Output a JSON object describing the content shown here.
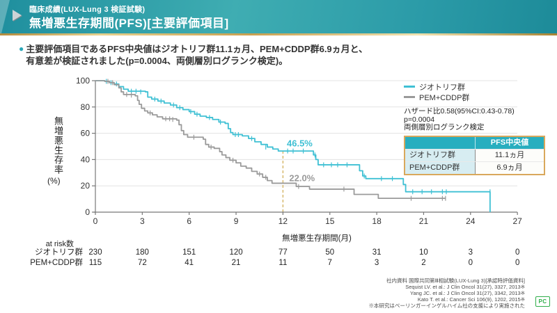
{
  "header": {
    "subtitle": "臨床成績(LUX-Lung 3 検証試験)",
    "title": "無増悪生存期間(PFS)[主要評価項目]"
  },
  "lead": {
    "bullet": "●",
    "line1": "主要評価項目であるPFS中央値はジオトリフ群11.1ヵ月、PEM+CDDP群6.9ヵ月と、",
    "line2": "有意差が検証されました(p=0.0004、両側層別ログランク検定)。"
  },
  "legend": {
    "items": [
      {
        "label": "ジオトリフ群",
        "color": "#3fc0d4"
      },
      {
        "label": "PEM+CDDP群",
        "color": "#9a9a9a"
      }
    ]
  },
  "stats": {
    "line1": "ハザード比0.58(95%CI:0.43-0.78)",
    "line2": "p=0.0004",
    "line3": "両側層別ログランク検定"
  },
  "median_table": {
    "header_label": "",
    "header_value": "PFS中央値",
    "rows": [
      {
        "label": "ジオトリフ群",
        "value": "11.1ヵ月"
      },
      {
        "label": "PEM+CDDP群",
        "value": "6.9ヵ月"
      }
    ]
  },
  "chart_data": {
    "type": "line",
    "kind": "kaplan-meier-step",
    "xlabel": "無増悪生存期間(月)",
    "ylabel_vertical": "無増悪生存率",
    "ylabel_unit": "(%)",
    "xlim": [
      0,
      27
    ],
    "ylim": [
      0,
      100
    ],
    "xticks": [
      0,
      3,
      6,
      9,
      12,
      15,
      18,
      21,
      24,
      27
    ],
    "yticks": [
      0,
      20,
      40,
      60,
      80,
      100
    ],
    "grid": "horizontal",
    "legend_position": "top-right",
    "series": [
      {
        "name": "ジオトリフ群",
        "color": "#3fc0d4",
        "median_months": 11.1,
        "points": [
          [
            0,
            100
          ],
          [
            0.6,
            99.5
          ],
          [
            0.9,
            98.5
          ],
          [
            1.2,
            97.5
          ],
          [
            1.5,
            95.5
          ],
          [
            1.8,
            93.5
          ],
          [
            2.1,
            92
          ],
          [
            3.2,
            91.5
          ],
          [
            3.35,
            87.5
          ],
          [
            3.6,
            86
          ],
          [
            4.0,
            84.5
          ],
          [
            4.4,
            83
          ],
          [
            4.8,
            81.5
          ],
          [
            5.2,
            79.5
          ],
          [
            5.6,
            78
          ],
          [
            6.0,
            76.5
          ],
          [
            6.35,
            74.5
          ],
          [
            6.7,
            73
          ],
          [
            7.1,
            72
          ],
          [
            7.5,
            70.5
          ],
          [
            7.9,
            68.5
          ],
          [
            8.3,
            67.5
          ],
          [
            8.5,
            63.5
          ],
          [
            8.65,
            60.5
          ],
          [
            8.8,
            59
          ],
          [
            9.4,
            58
          ],
          [
            9.8,
            56
          ],
          [
            10.2,
            53.5
          ],
          [
            10.6,
            51.5
          ],
          [
            11.0,
            49.5
          ],
          [
            11.35,
            48
          ],
          [
            11.7,
            46.5
          ],
          [
            13.8,
            46.5
          ],
          [
            13.95,
            43.5
          ],
          [
            14.1,
            40
          ],
          [
            14.25,
            36
          ],
          [
            16.7,
            36
          ],
          [
            16.9,
            31.5
          ],
          [
            17.1,
            27.5
          ],
          [
            17.3,
            25.5
          ],
          [
            19.5,
            25.5
          ],
          [
            19.7,
            21
          ],
          [
            19.85,
            15.5
          ],
          [
            25.25,
            15.5
          ],
          [
            25.25,
            0
          ]
        ],
        "censors": [
          [
            0.7,
            99.5
          ],
          [
            1.0,
            98.5
          ],
          [
            1.35,
            97.5
          ],
          [
            2.3,
            92
          ],
          [
            2.6,
            92
          ],
          [
            2.9,
            91.5
          ],
          [
            3.8,
            86
          ],
          [
            4.2,
            84.5
          ],
          [
            5.0,
            81.5
          ],
          [
            5.4,
            79.5
          ],
          [
            6.1,
            76.5
          ],
          [
            6.5,
            74.5
          ],
          [
            7.3,
            72
          ],
          [
            8.0,
            68.5
          ],
          [
            8.95,
            59
          ],
          [
            9.15,
            59
          ],
          [
            10.0,
            56
          ],
          [
            10.9,
            49.5
          ],
          [
            12.3,
            46.5
          ],
          [
            12.65,
            46.5
          ],
          [
            13.3,
            46.5
          ],
          [
            14.05,
            43.5
          ],
          [
            14.6,
            36
          ],
          [
            15.1,
            36
          ],
          [
            15.5,
            36
          ],
          [
            16.1,
            36
          ],
          [
            17.2,
            27.5
          ],
          [
            18.3,
            25.5
          ],
          [
            19.0,
            25.5
          ],
          [
            20.3,
            15.5
          ],
          [
            20.9,
            15.5
          ],
          [
            21.5,
            15.5
          ],
          [
            22.2,
            15.5
          ],
          [
            22.45,
            15.5
          ],
          [
            25.25,
            15.5
          ]
        ]
      },
      {
        "name": "PEM+CDDP群",
        "color": "#9a9a9a",
        "median_months": 6.9,
        "points": [
          [
            0,
            100
          ],
          [
            0.6,
            99.5
          ],
          [
            0.9,
            98.5
          ],
          [
            1.2,
            97
          ],
          [
            1.5,
            94.5
          ],
          [
            1.65,
            91.5
          ],
          [
            1.8,
            89.5
          ],
          [
            2.55,
            88.5
          ],
          [
            2.7,
            85
          ],
          [
            2.8,
            82
          ],
          [
            2.95,
            79
          ],
          [
            3.15,
            77
          ],
          [
            3.35,
            75.5
          ],
          [
            3.65,
            74
          ],
          [
            3.95,
            72.5
          ],
          [
            4.3,
            71
          ],
          [
            5.2,
            70
          ],
          [
            5.35,
            66.5
          ],
          [
            5.5,
            62
          ],
          [
            5.65,
            59
          ],
          [
            5.9,
            57
          ],
          [
            6.9,
            55.5
          ],
          [
            7.05,
            51.5
          ],
          [
            7.25,
            49.5
          ],
          [
            7.6,
            48.5
          ],
          [
            7.95,
            46
          ],
          [
            8.1,
            43.5
          ],
          [
            8.35,
            41.5
          ],
          [
            8.6,
            39.5
          ],
          [
            9.0,
            37.5
          ],
          [
            9.3,
            35
          ],
          [
            9.65,
            33.5
          ],
          [
            10.0,
            31
          ],
          [
            10.35,
            29
          ],
          [
            10.7,
            26.5
          ],
          [
            11.0,
            24
          ],
          [
            11.3,
            22
          ],
          [
            12.7,
            22
          ],
          [
            12.85,
            19.5
          ],
          [
            13.55,
            19.5
          ],
          [
            13.7,
            17.5
          ],
          [
            16.4,
            17.5
          ],
          [
            16.55,
            13.5
          ],
          [
            17.95,
            13.5
          ],
          [
            18.1,
            10.5
          ],
          [
            22.4,
            10.5
          ]
        ],
        "censors": [
          [
            0.8,
            99.5
          ],
          [
            1.1,
            98.5
          ],
          [
            2.0,
            89.5
          ],
          [
            2.3,
            89
          ],
          [
            3.5,
            75.5
          ],
          [
            4.5,
            71
          ],
          [
            4.75,
            71
          ],
          [
            4.95,
            70.5
          ],
          [
            6.3,
            57
          ],
          [
            7.4,
            49.5
          ],
          [
            8.8,
            39.5
          ],
          [
            10.5,
            29
          ],
          [
            10.9,
            26.5
          ],
          [
            13.0,
            19.5
          ],
          [
            15.9,
            17.5
          ],
          [
            20.2,
            10.5
          ],
          [
            22.2,
            10.5
          ],
          [
            22.4,
            10.5
          ]
        ]
      }
    ],
    "annotations": [
      {
        "text": "46.5%",
        "x": 12.25,
        "y": 50,
        "color": "#3fc0d4"
      },
      {
        "text": "22.0%",
        "x": 12.4,
        "y": 23.5,
        "color": "#9a9a9a"
      }
    ],
    "reference_line": {
      "x": 12,
      "y_top": 46.5,
      "style": "dashed",
      "color": "#d4b565"
    }
  },
  "at_risk": {
    "title": "at risk数",
    "rows": [
      {
        "label": "ジオトリフ群",
        "values": [
          230,
          180,
          151,
          120,
          77,
          50,
          31,
          10,
          3,
          0
        ]
      },
      {
        "label": "PEM+CDDP群",
        "values": [
          115,
          72,
          41,
          21,
          11,
          7,
          3,
          2,
          0,
          0
        ]
      }
    ]
  },
  "footer": {
    "lines": [
      "社内資料 国際共同第Ⅲ相試験(LUX-Lung 3)[承認時評価資料]",
      "Sequist LV. et al.: J Clin Oncol 31(27), 3327, 2013※",
      "Yang JC. et al.: J Clin Oncol 31(27), 3342, 2013※",
      "Kato T. et al.: Cancer Sci 106(9), 1202, 2015※",
      "※本研究はベーリンガーインゲルハイム社の支援により実施された"
    ]
  },
  "pc_badge": "PC",
  "colors": {
    "banner_teal": "#2b9ba8",
    "gold_line": "#c9a050",
    "accent_teal": "#3fc0d4",
    "accent_gray": "#9a9a9a",
    "table_header": "#28aebf",
    "table_border": "#d9a85c",
    "badge_green": "#2fae4a"
  }
}
